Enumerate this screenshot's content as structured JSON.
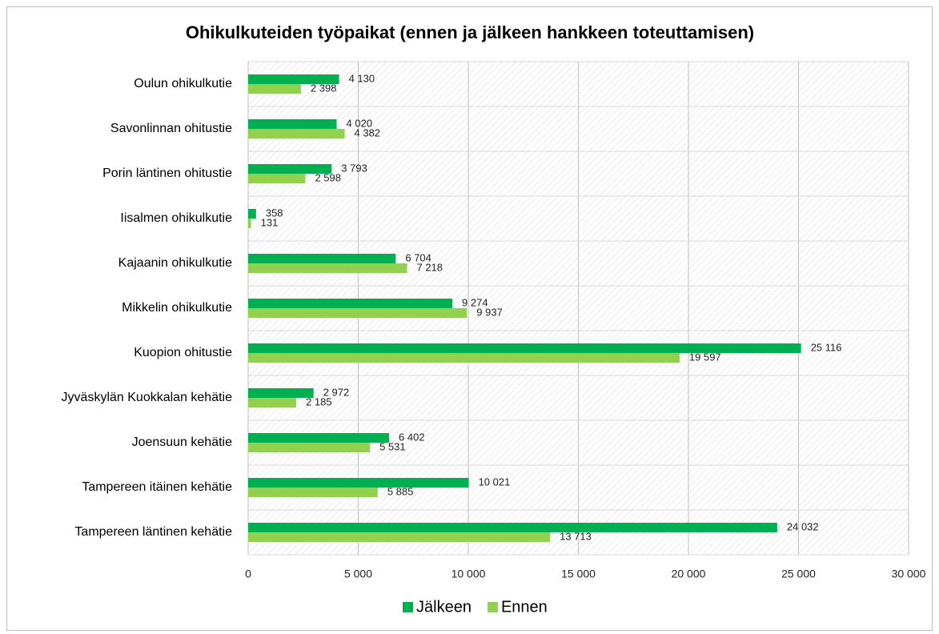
{
  "chart_data": {
    "type": "bar",
    "orientation": "horizontal",
    "title": "Ohikulkuteiden työpaikat (ennen ja jälkeen hankkeen toteuttamisen)",
    "categories": [
      "Oulun ohikulkutie",
      "Savonlinnan ohitustie",
      "Porin läntinen ohitustie",
      "Iisalmen ohikulkutie",
      "Kajaanin ohikulkutie",
      "Mikkelin ohikulkutie",
      "Kuopion ohitustie",
      "Jyväskylän Kuokkalan kehätie",
      "Joensuun kehätie",
      "Tampereen itäinen kehätie",
      "Tampereen läntinen kehätie"
    ],
    "series": [
      {
        "name": "Jälkeen",
        "color": "#00b050",
        "values": [
          4130,
          4020,
          3793,
          358,
          6704,
          9274,
          25116,
          2972,
          6402,
          10021,
          24032
        ],
        "value_labels": [
          "4 130",
          "4 020",
          "3 793",
          "358",
          "6 704",
          "9 274",
          "25 116",
          "2 972",
          "6 402",
          "10 021",
          "24 032"
        ]
      },
      {
        "name": "Ennen",
        "color": "#92d050",
        "values": [
          2398,
          4382,
          2598,
          131,
          7218,
          9937,
          19597,
          2185,
          5531,
          5885,
          13713
        ],
        "value_labels": [
          "2 398",
          "4 382",
          "2 598",
          "131",
          "7 218",
          "9 937",
          "19 597",
          "2 185",
          "5 531",
          "5 885",
          "13 713"
        ]
      }
    ],
    "xlim": [
      0,
      30000
    ],
    "xticks": [
      0,
      {
        "value": 5000,
        "label": "5 000"
      },
      {
        "value": 10000,
        "label": "10 000"
      },
      {
        "value": 15000,
        "label": "15 000"
      },
      {
        "value": 20000,
        "label": "20 000"
      },
      {
        "value": 25000,
        "label": "25 000"
      },
      {
        "value": 30000,
        "label": "30 000"
      }
    ],
    "grid": true,
    "legend": "bottom"
  }
}
